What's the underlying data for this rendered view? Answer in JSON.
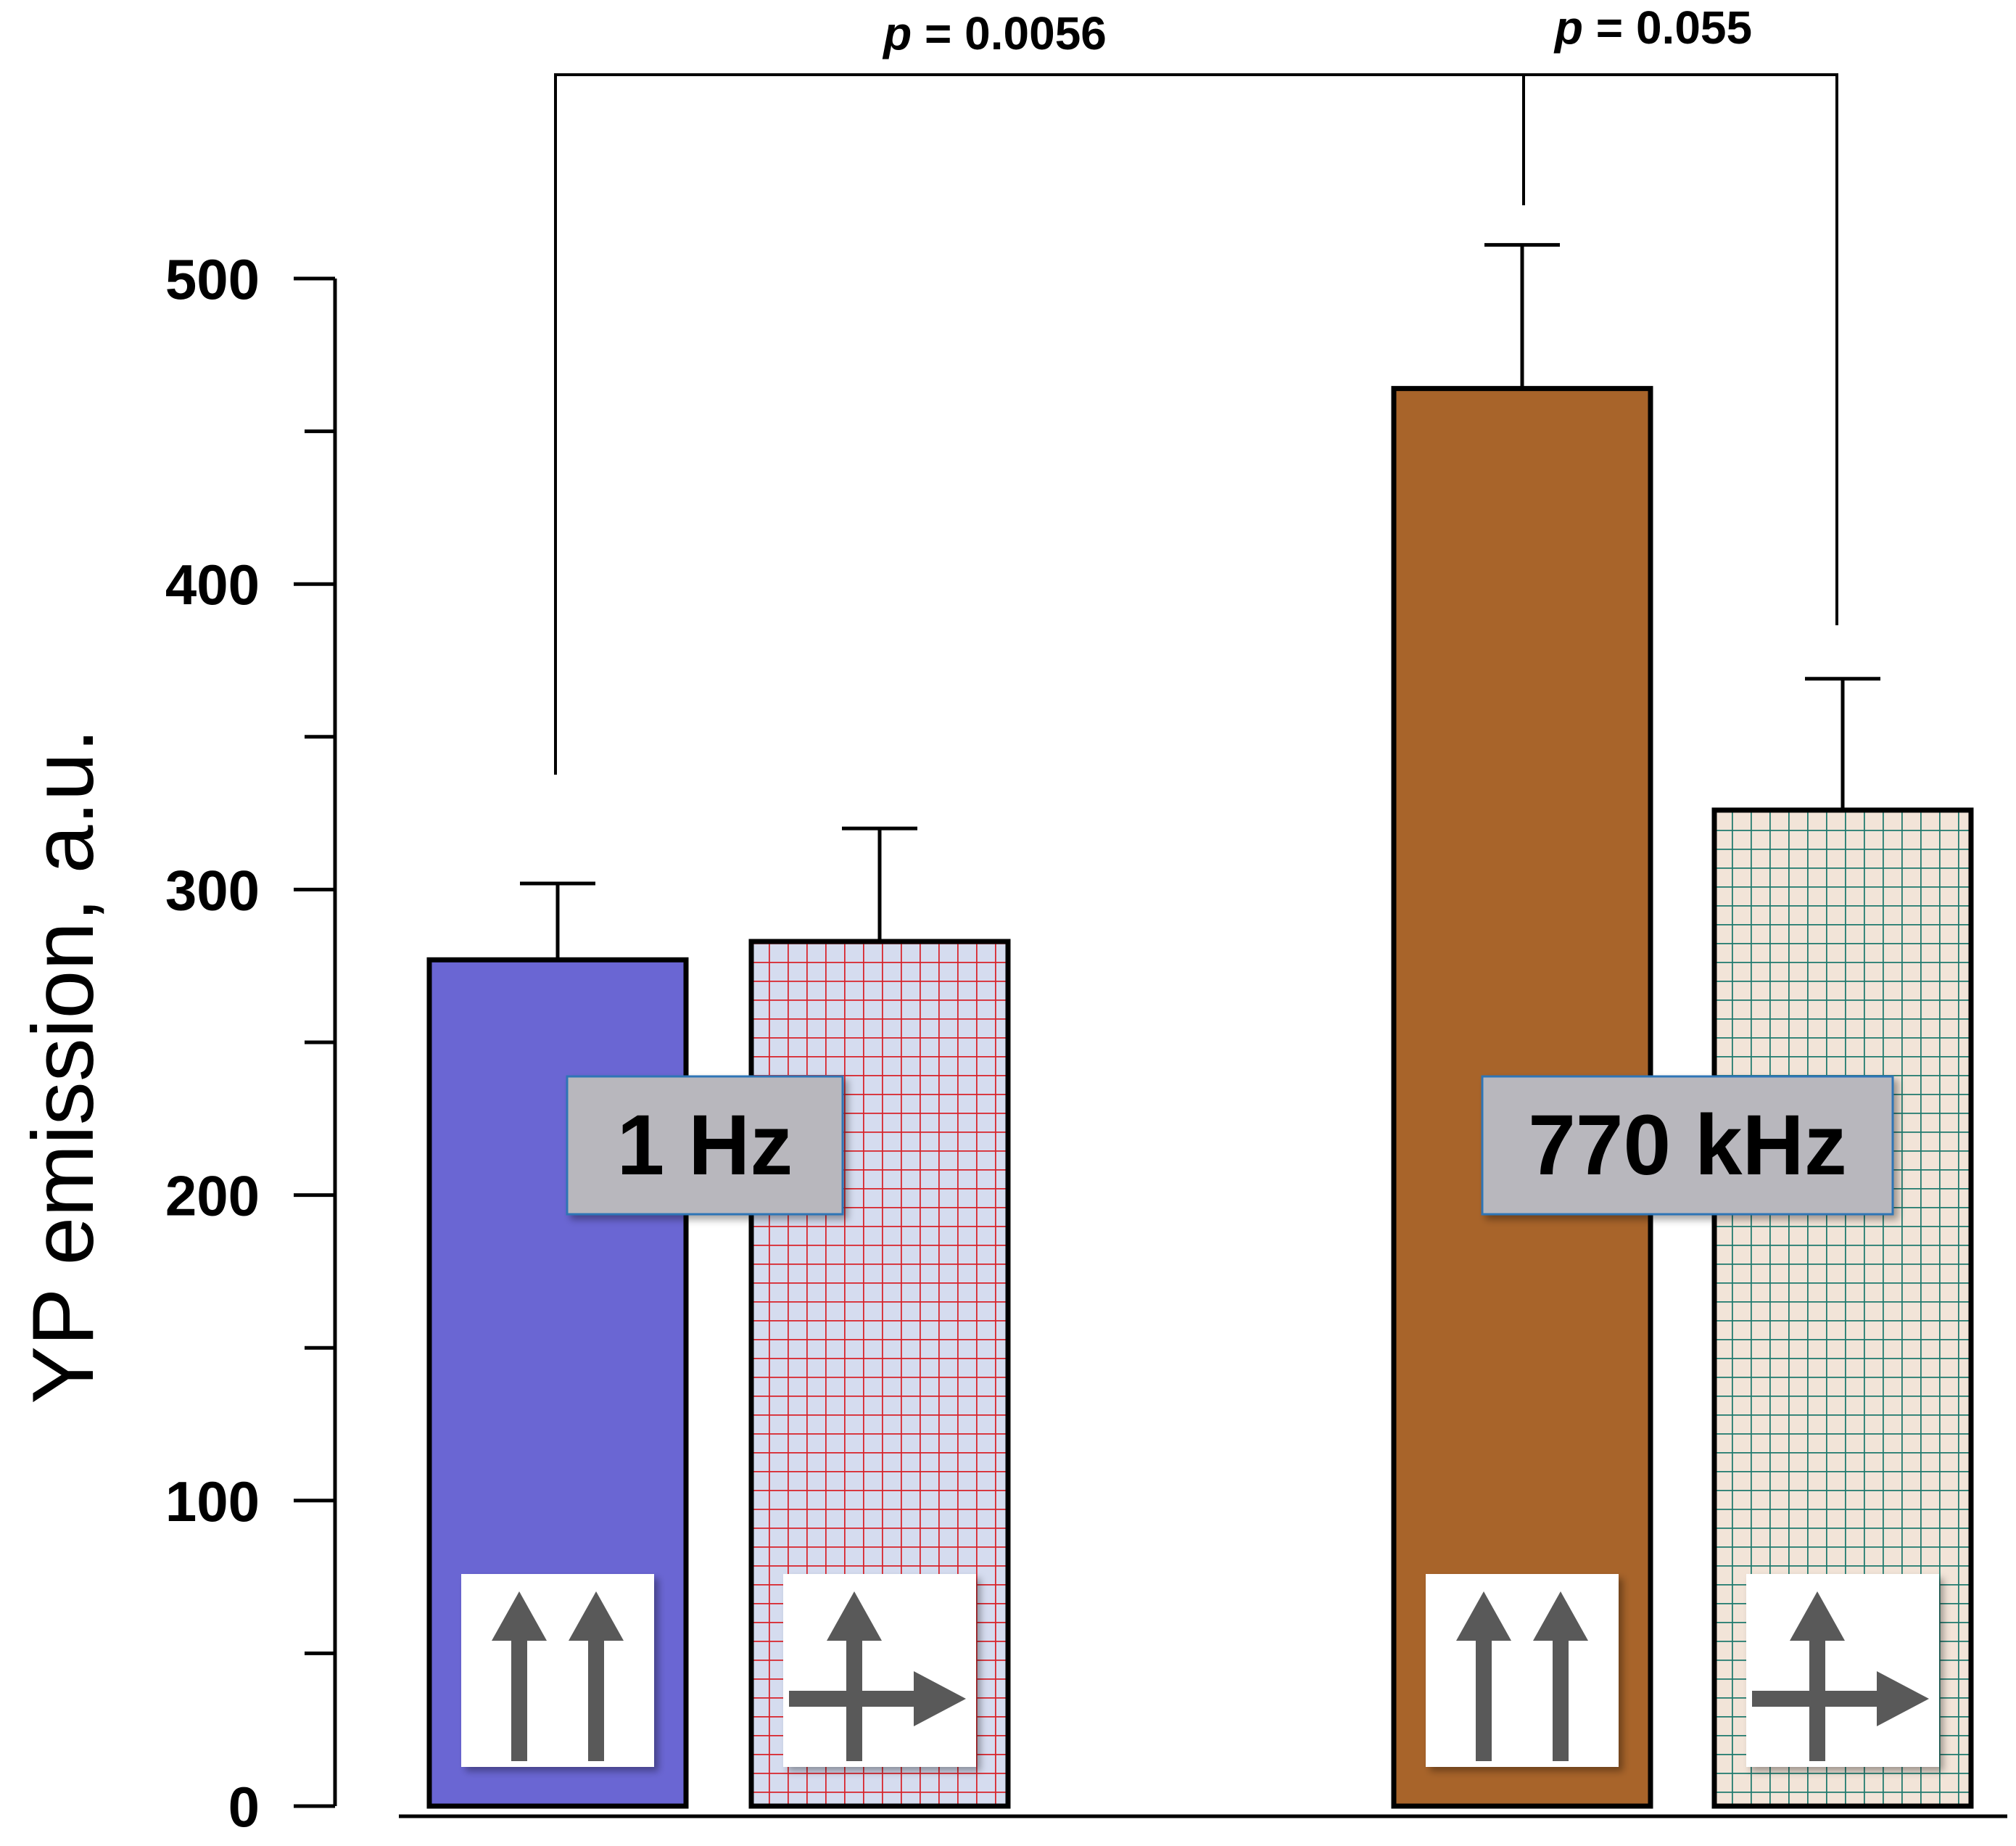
{
  "chart_data": {
    "type": "bar",
    "ylabel": "YP emission, a.u.",
    "ylim": [
      0,
      500
    ],
    "yticks_major": [
      0,
      100,
      200,
      300,
      400,
      500
    ],
    "yticks_minor": [
      50,
      150,
      250,
      350,
      450
    ],
    "groups": [
      {
        "label": "1 Hz",
        "bars": [
          {
            "name": "parallel",
            "value": 277,
            "error": 25,
            "fill": "#6a66d3",
            "pattern": "none",
            "icon": "parallel-arrows-icon"
          },
          {
            "name": "perpendicular",
            "value": 283,
            "error": 37,
            "fill": "#d5dcef",
            "pattern": "grid",
            "grid_color": "#d8232a",
            "icon": "perpendicular-arrows-icon"
          }
        ]
      },
      {
        "label": "770 kHz",
        "bars": [
          {
            "name": "parallel",
            "value": 464,
            "error": 47,
            "fill": "#a8642a",
            "pattern": "none",
            "icon": "parallel-arrows-icon"
          },
          {
            "name": "perpendicular",
            "value": 326,
            "error": 43,
            "fill": "#f2e4d8",
            "pattern": "grid",
            "grid_color": "#1f7a6e",
            "icon": "perpendicular-arrows-icon"
          }
        ]
      }
    ],
    "annotations": [
      {
        "text_prefix": "p",
        "text_value": " = 0.0056",
        "from_bar": [
          0,
          0
        ],
        "to_bar": [
          1,
          0
        ]
      },
      {
        "text_prefix": "p",
        "text_value": " = 0.055",
        "from_bar": [
          1,
          0
        ],
        "to_bar": [
          1,
          1
        ]
      }
    ],
    "colors": {
      "axis": "#000000",
      "arrow": "#595959",
      "label_box": "#b8b7bd",
      "label_box_border": "#2e75b6"
    }
  }
}
